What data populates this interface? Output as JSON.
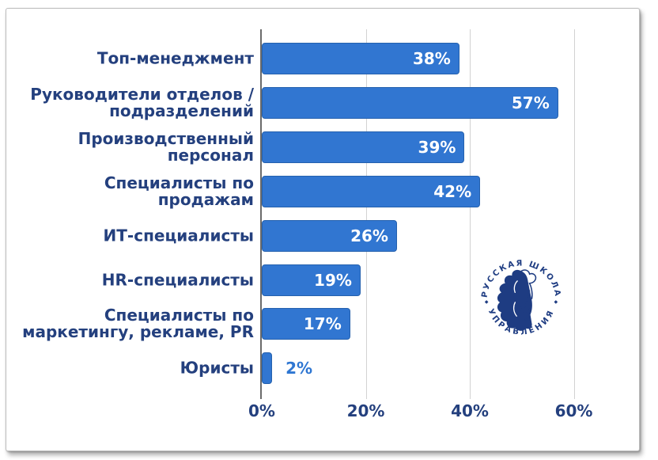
{
  "chart_data": {
    "type": "bar",
    "orientation": "horizontal",
    "title": "",
    "categories": [
      "Топ-менеджмент",
      "Руководители отделов / подразделений",
      "Производственный персонал",
      "Специалисты по продажам",
      "ИТ-специалисты",
      "HR-специалисты",
      "Специалисты по маркетингу, рекламе, PR",
      "Юристы"
    ],
    "category_lines": [
      [
        "Топ-менеджмент"
      ],
      [
        "Руководители отделов /",
        "подразделений"
      ],
      [
        "Производственный",
        "персонал"
      ],
      [
        "Специалисты по",
        "продажам"
      ],
      [
        "ИТ-специалисты"
      ],
      [
        "HR-специалисты"
      ],
      [
        "Специалисты по",
        "маркетингу, рекламе, PR"
      ],
      [
        "Юристы"
      ]
    ],
    "values": [
      38,
      57,
      39,
      42,
      26,
      19,
      17,
      2
    ],
    "value_labels": [
      "38%",
      "57%",
      "39%",
      "42%",
      "26%",
      "19%",
      "17%",
      "2%"
    ],
    "x_ticks": [
      {
        "label": "0%",
        "value": 0
      },
      {
        "label": "20%",
        "value": 20
      },
      {
        "label": "40%",
        "value": 40
      },
      {
        "label": "60%",
        "value": 60
      }
    ],
    "xlim": [
      0,
      66
    ],
    "grid": true,
    "legend": false,
    "value_label_outside_threshold_pct": 5,
    "colors": {
      "bar": "#3176D1",
      "bar_border": "#2561AE",
      "category_text": "#24407E",
      "axis_text": "#24407E",
      "value_inside": "#FFFFFF",
      "value_outside": "#2E76D2",
      "gridline": "#D2D2D2",
      "axis_line": "#6B6B6B"
    }
  },
  "logo": {
    "name": "Русская Школа Управления",
    "top_text": "РУССКАЯ ШКОЛА",
    "bottom_text": "УПРАВЛЕНИЯ",
    "icon": "lion-head-icon",
    "color": "#1E3C82"
  }
}
